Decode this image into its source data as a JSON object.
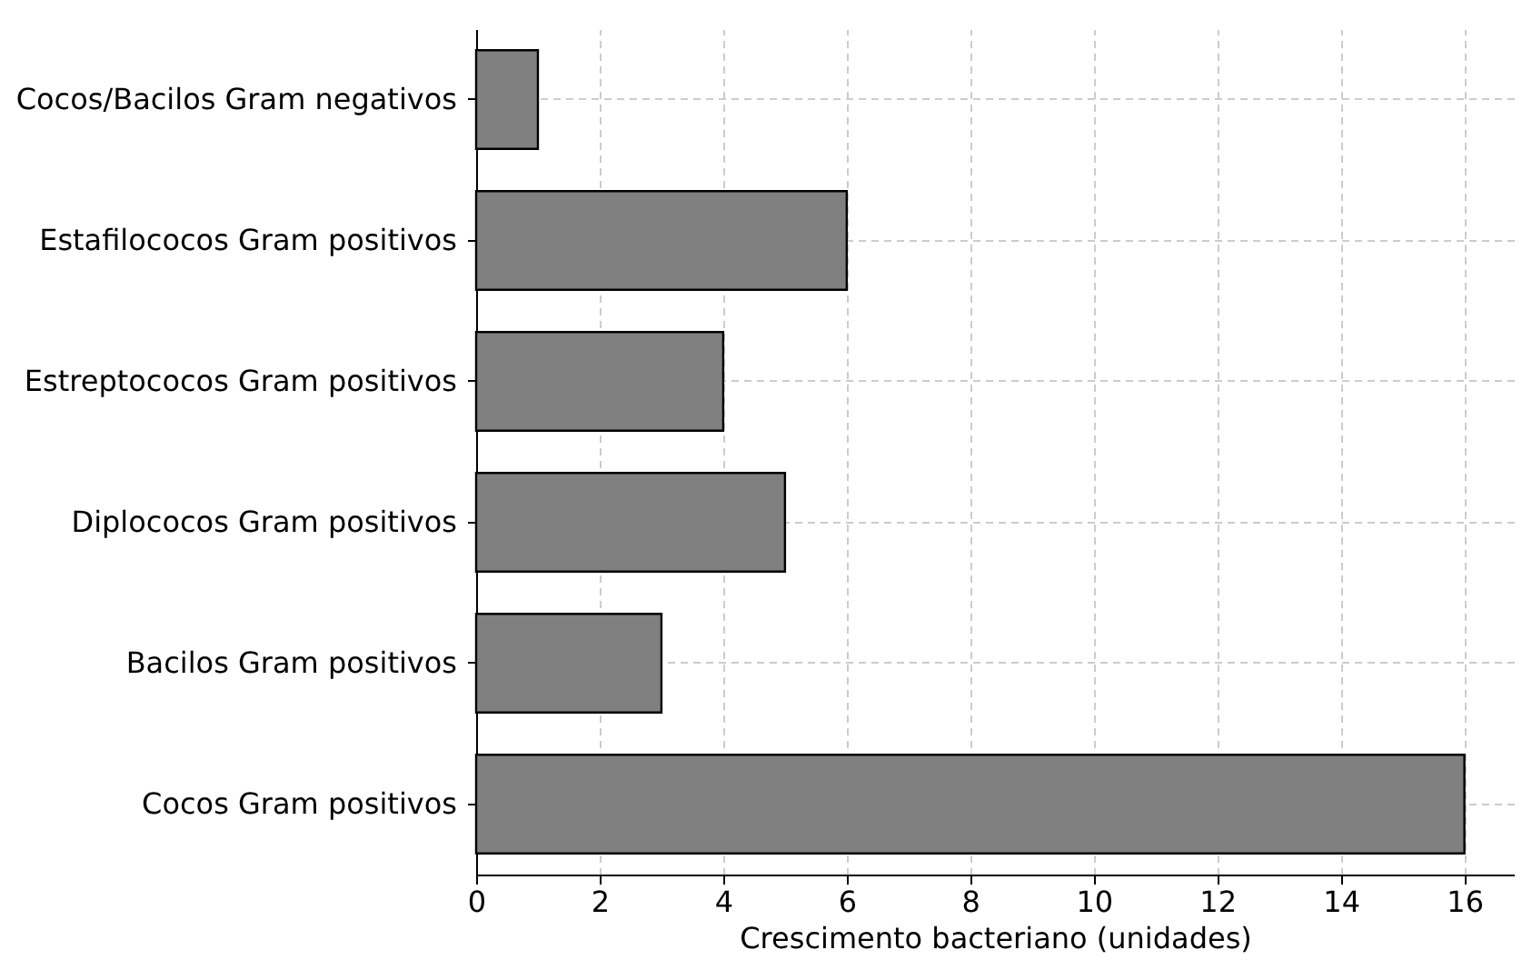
{
  "chart_data": {
    "type": "bar",
    "orientation": "horizontal",
    "xlabel": "Crescimento bacteriano (unidades)",
    "categories": [
      "Cocos/Bacilos Gram negativos",
      "Estafilococos Gram positivos",
      "Estreptococos Gram positivos",
      "Diplococos Gram positivos",
      "Bacilos Gram positivos",
      "Cocos Gram positivos"
    ],
    "values": [
      1,
      6,
      4,
      5,
      3,
      16
    ],
    "color": "#808080",
    "xlim": [
      0,
      16.8
    ],
    "xticks": [
      0,
      2,
      4,
      6,
      8,
      10,
      12,
      14,
      16
    ],
    "grid": true
  }
}
